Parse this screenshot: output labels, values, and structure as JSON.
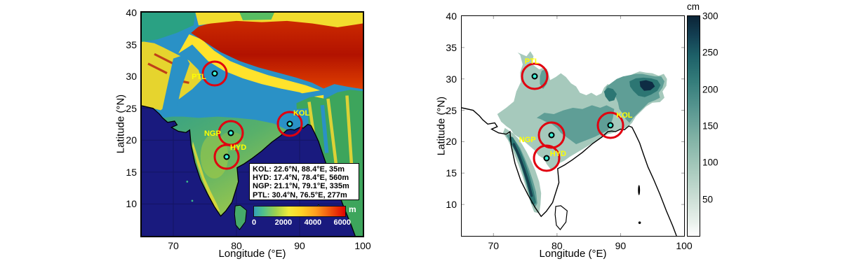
{
  "figure": {
    "left": {
      "description": "Topographic elevation map of India with station locations",
      "xlabel": "Longitude (°E)",
      "ylabel": "Latitude (°N)",
      "xlim": [
        65,
        100
      ],
      "ylim": [
        5,
        40
      ],
      "xticks": [
        70,
        80,
        90,
        100
      ],
      "yticks": [
        40,
        35,
        30,
        25,
        20,
        15,
        10
      ],
      "info_box": {
        "lines": [
          "KOL: 22.6°N, 88.4°E, 35m",
          "HYD: 17.4°N, 78.4°E, 560m",
          "NGP: 21.1°N, 79.1°E, 335m",
          "PTL: 30.4°N, 76.5°E, 277m"
        ]
      },
      "colorbar": {
        "label": "m",
        "orientation": "horizontal",
        "min": 0,
        "max": 6200,
        "ticks": [
          0,
          2000,
          4000,
          6000
        ],
        "colors": [
          "#35a0b8",
          "#4fc08c",
          "#9ed04f",
          "#f2ea3a",
          "#ffd126",
          "#ff9d1e",
          "#f0560e",
          "#df0300"
        ],
        "stops_pct": [
          0,
          10,
          24,
          38,
          52,
          68,
          83,
          100
        ]
      }
    },
    "right": {
      "description": "Filled contour map (cm) over India with station locations",
      "xlabel": "Longitude (°E)",
      "ylabel": "Latitude (°N)",
      "xlim": [
        65,
        100
      ],
      "ylim": [
        5,
        40
      ],
      "xticks": [
        70,
        80,
        90,
        100
      ],
      "yticks": [
        40,
        35,
        30,
        25,
        20,
        15,
        10
      ],
      "colorbar": {
        "label": "cm",
        "orientation": "vertical",
        "min": 0,
        "max": 300,
        "ticks": [
          50,
          100,
          150,
          200,
          250,
          300
        ],
        "colors_bottom_to_top": [
          "#ffffff",
          "#e9f1ec",
          "#cfe0d7",
          "#a8cabd",
          "#7fb1a4",
          "#579690",
          "#357d7b",
          "#1d6068",
          "#123c50",
          "#0b2436"
        ],
        "stops_pct": [
          0,
          6,
          16,
          30,
          45,
          58,
          70,
          82,
          92,
          100
        ]
      }
    }
  },
  "stations": [
    {
      "id": "KOL",
      "lat_deg": 22.6,
      "lon_deg": 88.4,
      "elevation": "35m"
    },
    {
      "id": "HYD",
      "lat_deg": 17.4,
      "lon_deg": 78.4,
      "elevation": "560m"
    },
    {
      "id": "NGP",
      "lat_deg": 21.1,
      "lon_deg": 79.1,
      "elevation": "335m"
    },
    {
      "id": "PTL",
      "lat_deg": 30.4,
      "lon_deg": 76.5,
      "elevation": "277m"
    }
  ],
  "palette": {
    "ocean": "#191a7e",
    "plain_blue": "#2a91c6",
    "peninsula_green": "#44a97e",
    "ghats_yellow": "#ddd83a",
    "nw_yellow": "#e6d42e",
    "himalaya_red": "#c62200",
    "fringe_yellow": "#ffe22c",
    "contour_light": "#a6c9bc",
    "contour_mid": "#5f9e96",
    "contour_dark": "#2c7673",
    "contour_darkest": "#0e2c44",
    "station_dot": "#3cf2d8",
    "station_circle": "#e1000f",
    "station_label": "#ffff00"
  }
}
